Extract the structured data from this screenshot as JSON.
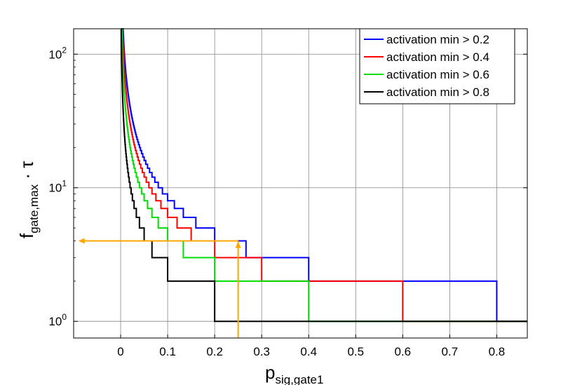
{
  "chart_data": {
    "type": "line",
    "step": true,
    "title": "",
    "xlabel": {
      "main": "p",
      "sub": "sig,gate1"
    },
    "ylabel": {
      "main": "f",
      "sub": "gate,max",
      "suffix": " · τ"
    },
    "xlim": [
      -0.1,
      0.865
    ],
    "ylim": [
      0.75,
      155
    ],
    "yscale": "log",
    "grid": true,
    "legend_position": "top-right",
    "x_ticks": [
      {
        "value": 0,
        "label": "0"
      },
      {
        "value": 0.1,
        "label": "0.1"
      },
      {
        "value": 0.2,
        "label": "0.2"
      },
      {
        "value": 0.3,
        "label": "0.3"
      },
      {
        "value": 0.4,
        "label": "0.4"
      },
      {
        "value": 0.5,
        "label": "0.5"
      },
      {
        "value": 0.6,
        "label": "0.6"
      },
      {
        "value": 0.7,
        "label": "0.7"
      },
      {
        "value": 0.8,
        "label": "0.8"
      }
    ],
    "y_ticks": [
      {
        "value": 1,
        "base": "10",
        "exp": "0"
      },
      {
        "value": 10,
        "base": "10",
        "exp": "1"
      },
      {
        "value": 100,
        "base": "10",
        "exp": "2"
      }
    ],
    "series": [
      {
        "name": "activation min > 0.2",
        "color": "#0000ff",
        "a": 0.8
      },
      {
        "name": "activation min > 0.4",
        "color": "#ff0000",
        "a": 0.6
      },
      {
        "name": "activation min > 0.6",
        "color": "#00dd00",
        "a": 0.4
      },
      {
        "name": "activation min > 0.8",
        "color": "#000000",
        "a": 0.2
      }
    ],
    "annotation": {
      "color": "#ffa500",
      "x": 0.25,
      "y": 4,
      "x_end": -0.09,
      "y_end": 0.75
    }
  }
}
